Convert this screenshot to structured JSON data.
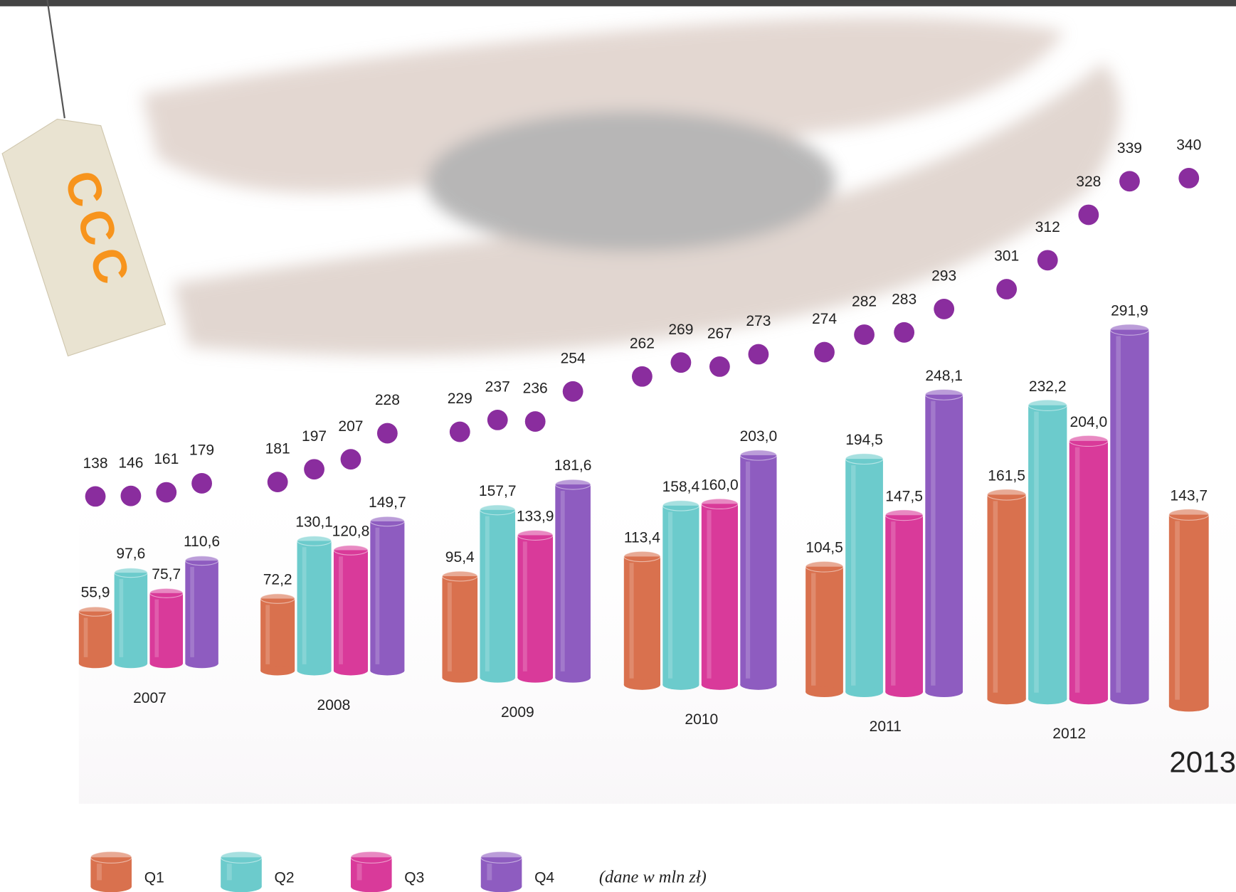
{
  "logo": "CCC",
  "chart_data": [
    {
      "type": "bar",
      "categories": [
        "2007",
        "2008",
        "2009",
        "2010",
        "2011",
        "2012",
        "2013"
      ],
      "series": [
        {
          "name": "Q1",
          "color": "#d9714e",
          "values": [
            55.9,
            72.2,
            95.4,
            113.4,
            104.5,
            161.5,
            143.7
          ],
          "value_labels": [
            "55,9",
            "72,2",
            "95,4",
            "113,4",
            "104,5",
            "161,5",
            "143,7"
          ]
        },
        {
          "name": "Q2",
          "color": "#6ccbcc",
          "values": [
            97.6,
            130.1,
            157.7,
            158.4,
            194.5,
            232.2,
            null
          ],
          "value_labels": [
            "97,6",
            "130,1",
            "157,7",
            "158,4",
            "194,5",
            "232,2",
            null
          ]
        },
        {
          "name": "Q3",
          "color": "#d93a9a",
          "values": [
            75.7,
            120.8,
            133.9,
            160.0,
            147.5,
            204.0,
            null
          ],
          "value_labels": [
            "75,7",
            "120,8",
            "133,9",
            "160,0",
            "147,5",
            "204,0",
            null
          ]
        },
        {
          "name": "Q4",
          "color": "#8e5cc0",
          "values": [
            110.6,
            149.7,
            181.6,
            203.0,
            248.1,
            291.9,
            null
          ],
          "value_labels": [
            "110,6",
            "149,7",
            "181,6",
            "203,0",
            "248,1",
            "291,9",
            null
          ]
        }
      ],
      "annotation": "(dane w mln zł)"
    },
    {
      "type": "scatter",
      "color": "#8a2d9e",
      "values": [
        138,
        146,
        161,
        179,
        181,
        197,
        207,
        228,
        229,
        237,
        236,
        254,
        262,
        269,
        267,
        273,
        274,
        282,
        283,
        293,
        301,
        312,
        328,
        339,
        340
      ]
    }
  ]
}
